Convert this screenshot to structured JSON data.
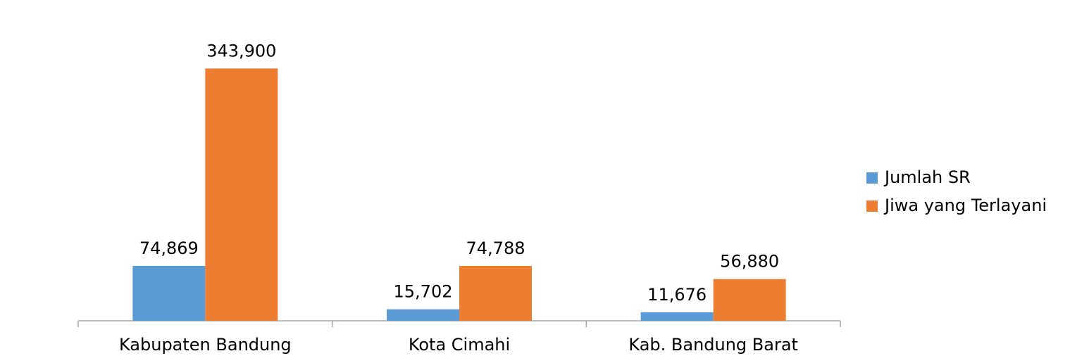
{
  "chart_data": {
    "type": "bar",
    "categories": [
      "Kabupaten Bandung",
      "Kota Cimahi",
      "Kab. Bandung Barat"
    ],
    "series": [
      {
        "name": "Jumlah SR",
        "color": "#5b9bd5",
        "values": [
          74869,
          15702,
          11676
        ],
        "value_labels": [
          "74,869",
          "15,702",
          "11,676"
        ]
      },
      {
        "name": "Jiwa yang Terlayani",
        "color": "#ed7d31",
        "values": [
          343900,
          74788,
          56880
        ],
        "value_labels": [
          "343,900",
          "74,788",
          "56,880"
        ]
      }
    ],
    "ylim": [
      0,
      350000
    ],
    "legend": "right"
  }
}
